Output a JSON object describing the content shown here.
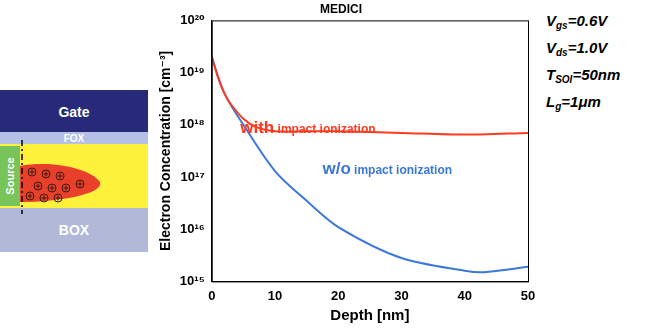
{
  "diagram": {
    "labels": {
      "gate": "Gate",
      "fox": "FOX",
      "source": "Source",
      "box": "BOX"
    }
  },
  "chart_data": {
    "type": "line",
    "title": "MEDICI",
    "x_label": "Depth [nm]",
    "y_label": "Electron Concentration [cm⁻³]",
    "log": "y",
    "grid": false,
    "xlim": [
      0,
      50
    ],
    "xticks": [
      0,
      10,
      20,
      30,
      40,
      50
    ],
    "ylim": [
      1000000000000000.0,
      1e+20
    ],
    "yticks": [
      {
        "value": 1000000000000000.0,
        "label": "10¹⁵"
      },
      {
        "value": 1e+16,
        "label": "10¹⁶"
      },
      {
        "value": 1e+17,
        "label": "10¹⁷"
      },
      {
        "value": 1e+18,
        "label": "10¹⁸"
      },
      {
        "value": 1e+19,
        "label": "10¹⁹"
      },
      {
        "value": 1e+20,
        "label": "10²⁰"
      }
    ],
    "series": [
      {
        "name": "with impact ionization",
        "color": "#ff3a1e",
        "marker": "none",
        "line_style": "solid",
        "x": [
          0,
          1,
          2,
          3,
          5,
          7,
          10,
          15,
          20,
          30,
          40,
          50
        ],
        "values": [
          2e+19,
          8e+18,
          4e+18,
          2.5e+18,
          1.3e+18,
          9e+17,
          7.5e+17,
          7.5e+17,
          7.5e+17,
          7e+17,
          6.5e+17,
          7e+17
        ]
      },
      {
        "name": "w/o impact ionization",
        "color": "#3c78d8",
        "marker": "none",
        "line_style": "solid",
        "x": [
          0,
          2,
          5,
          10,
          15,
          20,
          30,
          40,
          43,
          50
        ],
        "values": [
          2e+19,
          4e+18,
          1e+18,
          1.3e+17,
          3.5e+16,
          1.1e+16,
          2800000000000000.0,
          1600000000000000.0,
          1500000000000000.0,
          1900000000000000.0
        ]
      }
    ],
    "annotations": [
      {
        "text": "with impact ionization",
        "color": "#ff3a1e"
      },
      {
        "text": "w/o impact ionization",
        "color": "#3c78d8"
      }
    ],
    "parameters": [
      {
        "symbol": "V",
        "sub": "gs",
        "rest": "=0.6V"
      },
      {
        "symbol": "V",
        "sub": "ds",
        "rest": "=1.0V"
      },
      {
        "symbol": "T",
        "sub": "SOI",
        "rest": "=50nm"
      },
      {
        "symbol": "L",
        "sub": "g",
        "rest": "=1μm"
      }
    ]
  }
}
